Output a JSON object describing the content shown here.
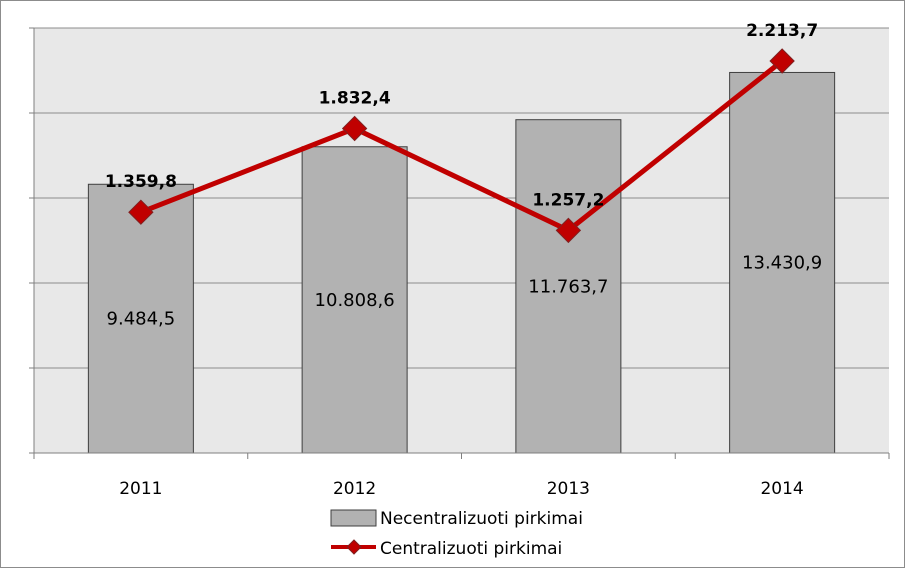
{
  "chart_data": {
    "type": "bar",
    "categories": [
      "2011",
      "2012",
      "2013",
      "2014"
    ],
    "series": [
      {
        "name": "Necentralizuoti pirkimai",
        "type": "bar",
        "values": [
          9484.5,
          10808.6,
          11763.7,
          13430.9
        ],
        "labels": [
          "9.484,5",
          "10.808,6",
          "11.763,7",
          "13.430,9"
        ],
        "color": "#b2b2b2"
      },
      {
        "name": "Centralizuoti pirkimai",
        "type": "line",
        "values": [
          1359.8,
          1832.4,
          1257.2,
          2213.7
        ],
        "labels": [
          "1.359,8",
          "1.832,4",
          "1.257,2",
          "2.213,7"
        ],
        "color": "#c00000",
        "marker": "diamond"
      }
    ],
    "bar_axis_range": [
      0,
      15000
    ],
    "line_axis_range": [
      0,
      2400
    ],
    "grid": true,
    "legend_position": "bottom",
    "plot_background": "#e8e8e8"
  }
}
